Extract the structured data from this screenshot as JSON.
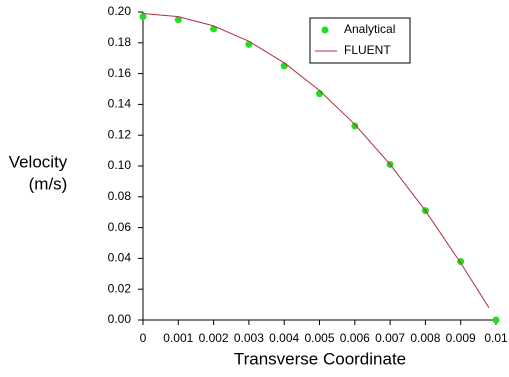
{
  "chart_data": {
    "type": "line",
    "xlabel": "Transverse Coordinate",
    "ylabel": [
      "Velocity",
      "(m/s)"
    ],
    "xlim": [
      0,
      0.01
    ],
    "ylim": [
      0,
      0.2
    ],
    "xticks": [
      0,
      0.001,
      0.002,
      0.003,
      0.004,
      0.005,
      0.006,
      0.007,
      0.008,
      0.009,
      0.01
    ],
    "yticks": [
      {
        "value": 0,
        "label": "0.00"
      },
      {
        "value": 0.02,
        "label": "0.02"
      },
      {
        "value": 0.04,
        "label": "0.04"
      },
      {
        "value": 0.06,
        "label": "0.06"
      },
      {
        "value": 0.08,
        "label": "0.08"
      },
      {
        "value": 0.1,
        "label": "0.10"
      },
      {
        "value": 0.12,
        "label": "0.12"
      },
      {
        "value": 0.14,
        "label": "0.14"
      },
      {
        "value": 0.16,
        "label": "0.16"
      },
      {
        "value": 0.18,
        "label": "0.18"
      },
      {
        "value": 0.2,
        "label": "0.20"
      }
    ],
    "legend": "upper right",
    "series": [
      {
        "name": "Analytical",
        "type": "scatter",
        "color": "#22dd22",
        "x": [
          0,
          0.001,
          0.002,
          0.003,
          0.004,
          0.005,
          0.006,
          0.007,
          0.008,
          0.009,
          0.01
        ],
        "values": [
          0.197,
          0.195,
          0.189,
          0.179,
          0.165,
          0.147,
          0.126,
          0.101,
          0.071,
          0.038,
          0.0
        ]
      },
      {
        "name": "FLUENT",
        "type": "line",
        "color": "#b03040",
        "x": [
          0,
          0.001,
          0.002,
          0.003,
          0.004,
          0.005,
          0.006,
          0.007,
          0.008,
          0.009,
          0.0098
        ],
        "values": [
          0.199,
          0.197,
          0.191,
          0.181,
          0.167,
          0.149,
          0.127,
          0.101,
          0.071,
          0.037,
          0.008
        ]
      }
    ]
  }
}
